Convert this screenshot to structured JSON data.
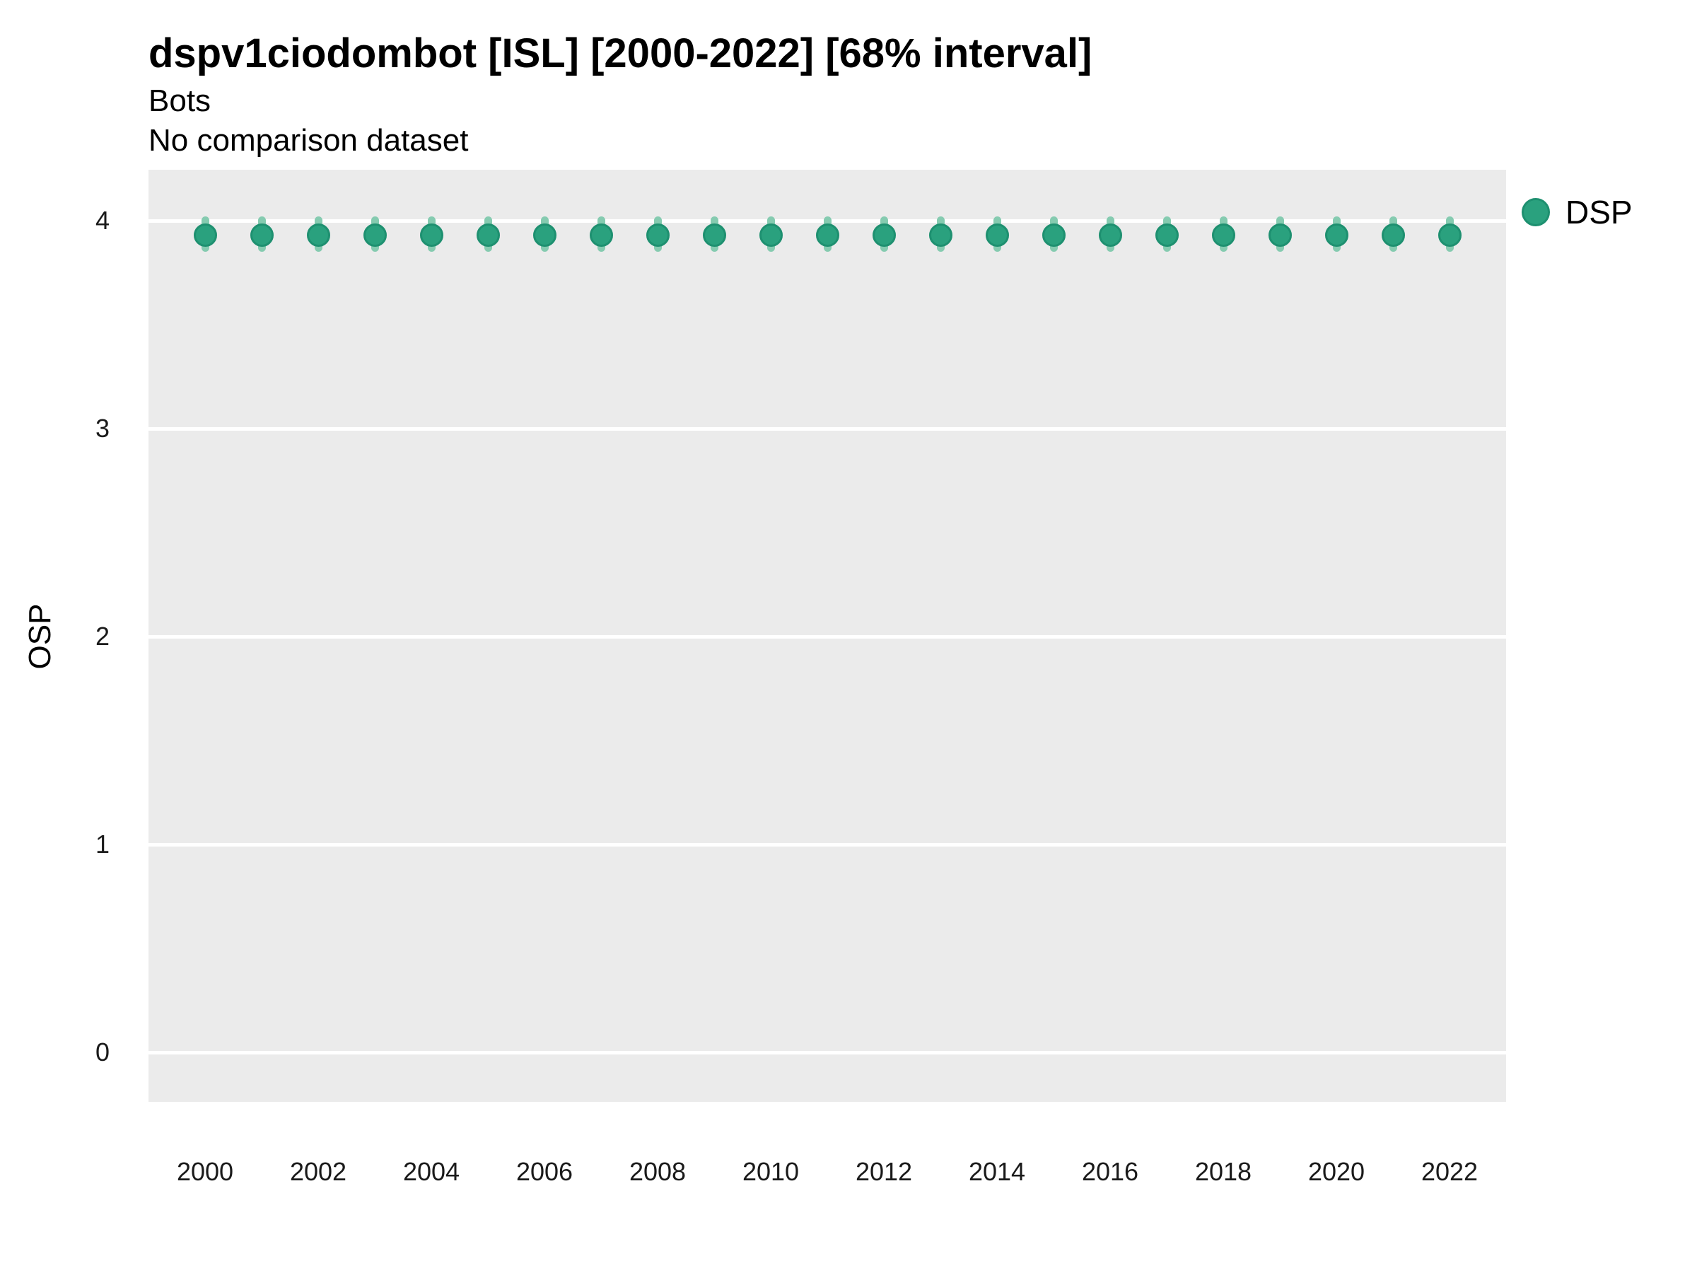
{
  "header": {
    "title": "dspv1ciodombot [ISL] [2000-2022] [68% interval]",
    "subtitle_line1": "Bots",
    "subtitle_line2": "No comparison dataset"
  },
  "legend": {
    "label": "DSP"
  },
  "y_axis": {
    "label": "OSP",
    "tick_labels": [
      "4",
      "3",
      "2",
      "1",
      "0"
    ]
  },
  "x_axis": {
    "tick_labels": [
      "2000",
      "2002",
      "2004",
      "2006",
      "2008",
      "2010",
      "2012",
      "2014",
      "2016",
      "2018",
      "2020",
      "2022"
    ]
  },
  "colors": {
    "point_fill": "#2aa17e",
    "point_border": "#1e9070",
    "interval_bar": "#85cbb0",
    "panel_background": "#ebebeb",
    "gridline": "#ffffff",
    "text": "#000000"
  },
  "chart_data": {
    "type": "scatter",
    "title": "dspv1ciodombot [ISL] [2000-2022] [68% interval]",
    "subtitle": [
      "Bots",
      "No comparison dataset"
    ],
    "xlabel": "",
    "ylabel": "OSP",
    "ylim": [
      -0.24,
      4.25
    ],
    "yticks": [
      4,
      3,
      2,
      1,
      0
    ],
    "xticks": [
      2000,
      2002,
      2004,
      2006,
      2008,
      2010,
      2012,
      2014,
      2016,
      2018,
      2020,
      2022
    ],
    "grid": true,
    "legend_position": "right",
    "interval_level": "68%",
    "series": [
      {
        "name": "DSP",
        "x": [
          2000,
          2001,
          2002,
          2003,
          2004,
          2005,
          2006,
          2007,
          2008,
          2009,
          2010,
          2011,
          2012,
          2013,
          2014,
          2015,
          2016,
          2017,
          2018,
          2019,
          2020,
          2021,
          2022
        ],
        "y": [
          3.93,
          3.93,
          3.93,
          3.93,
          3.93,
          3.93,
          3.93,
          3.93,
          3.93,
          3.93,
          3.93,
          3.93,
          3.93,
          3.93,
          3.93,
          3.93,
          3.93,
          3.93,
          3.93,
          3.93,
          3.93,
          3.93,
          3.93
        ],
        "y_low": [
          3.85,
          3.85,
          3.85,
          3.85,
          3.85,
          3.85,
          3.85,
          3.85,
          3.85,
          3.85,
          3.85,
          3.85,
          3.85,
          3.85,
          3.85,
          3.85,
          3.85,
          3.85,
          3.85,
          3.85,
          3.85,
          3.85,
          3.85
        ],
        "y_high": [
          4.02,
          4.02,
          4.02,
          4.02,
          4.02,
          4.02,
          4.02,
          4.02,
          4.02,
          4.02,
          4.02,
          4.02,
          4.02,
          4.02,
          4.02,
          4.02,
          4.02,
          4.02,
          4.02,
          4.02,
          4.02,
          4.02,
          4.02
        ]
      }
    ]
  }
}
